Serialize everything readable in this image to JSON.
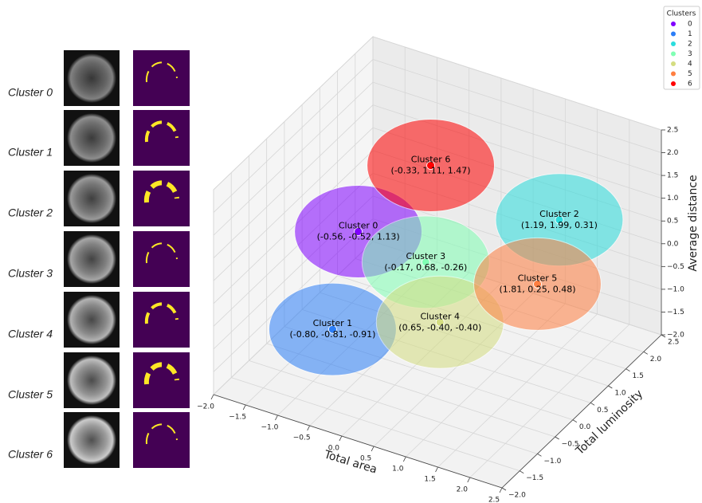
{
  "panels": [
    {
      "label": "Cluster 0"
    },
    {
      "label": "Cluster 1"
    },
    {
      "label": "Cluster 2"
    },
    {
      "label": "Cluster 3"
    },
    {
      "label": "Cluster 4"
    },
    {
      "label": "Cluster 5"
    },
    {
      "label": "Cluster 6"
    }
  ],
  "chart_data": {
    "type": "scatter3d",
    "xlabel": "Total area",
    "ylabel": "Total luminosity",
    "zlabel": "Average distance",
    "legend_title": "Clusters",
    "legend": "upper right",
    "grid": true,
    "xlim": [
      -2,
      2.5
    ],
    "ylim": [
      -2,
      2.5
    ],
    "zlim": [
      -2,
      2.5
    ],
    "xticks": [
      {
        "value": -2,
        "label": "−2.0"
      },
      {
        "value": -1.5,
        "label": "−1.5"
      },
      {
        "value": -1,
        "label": "−1.0"
      },
      {
        "value": -0.5,
        "label": "−0.5"
      },
      {
        "value": 0,
        "label": "0.0"
      },
      {
        "value": 0.5,
        "label": "0.5"
      },
      {
        "value": 1,
        "label": "1.0"
      },
      {
        "value": 1.5,
        "label": "1.5"
      },
      {
        "value": 2,
        "label": "2.0"
      },
      {
        "value": 2.5,
        "label": "2.5"
      }
    ],
    "yticks": [
      {
        "value": -2,
        "label": "−2.0"
      },
      {
        "value": -1.5,
        "label": "−1.5"
      },
      {
        "value": -1,
        "label": "−1.0"
      },
      {
        "value": -0.5,
        "label": "−0.5"
      },
      {
        "value": 0,
        "label": "0.0"
      },
      {
        "value": 0.5,
        "label": "0.5"
      },
      {
        "value": 1,
        "label": "1.0"
      },
      {
        "value": 1.5,
        "label": "1.5"
      },
      {
        "value": 2,
        "label": "2.0"
      },
      {
        "value": 2.5,
        "label": "2.5"
      }
    ],
    "zticks": [
      {
        "value": -2,
        "label": "−2.0"
      },
      {
        "value": -1.5,
        "label": "−1.5"
      },
      {
        "value": -1,
        "label": "−1.0"
      },
      {
        "value": -0.5,
        "label": "−0.5"
      },
      {
        "value": 0,
        "label": "0.0"
      },
      {
        "value": 0.5,
        "label": "0.5"
      },
      {
        "value": 1,
        "label": "1.0"
      },
      {
        "value": 1.5,
        "label": "1.5"
      },
      {
        "value": 2,
        "label": "2.0"
      },
      {
        "value": 2.5,
        "label": "2.5"
      }
    ],
    "series": [
      {
        "name": "0",
        "color": "#8000ff",
        "annotation": "Cluster 0",
        "center": [
          -0.56,
          -0.52,
          1.13
        ],
        "center_label": "(-0.56, -0.52, 1.13)"
      },
      {
        "name": "1",
        "color": "#2c7ef7",
        "annotation": "Cluster 1",
        "center": [
          -0.8,
          -0.81,
          -0.91
        ],
        "center_label": "(-0.80, -0.81, -0.91)"
      },
      {
        "name": "2",
        "color": "#2adddd",
        "annotation": "Cluster 2",
        "center": [
          1.19,
          1.99,
          0.31
        ],
        "center_label": "(1.19, 1.99, 0.31)"
      },
      {
        "name": "3",
        "color": "#80ffb4",
        "annotation": "Cluster 3",
        "center": [
          -0.17,
          0.68,
          -0.26
        ],
        "center_label": "(-0.17, 0.68, -0.26)"
      },
      {
        "name": "4",
        "color": "#d4dd80",
        "annotation": "Cluster 4",
        "center": [
          0.65,
          -0.4,
          -0.4
        ],
        "center_label": "(0.65, -0.40, -0.40)"
      },
      {
        "name": "5",
        "color": "#ff7f41",
        "annotation": "Cluster 5",
        "center": [
          1.81,
          0.25,
          0.48
        ],
        "center_label": "(1.81, 0.25, 0.48)"
      },
      {
        "name": "6",
        "color": "#ff0000",
        "annotation": "Cluster 6",
        "center": [
          -0.33,
          1.11,
          1.47
        ],
        "center_label": "(-0.33, 1.11, 1.47)"
      }
    ]
  }
}
